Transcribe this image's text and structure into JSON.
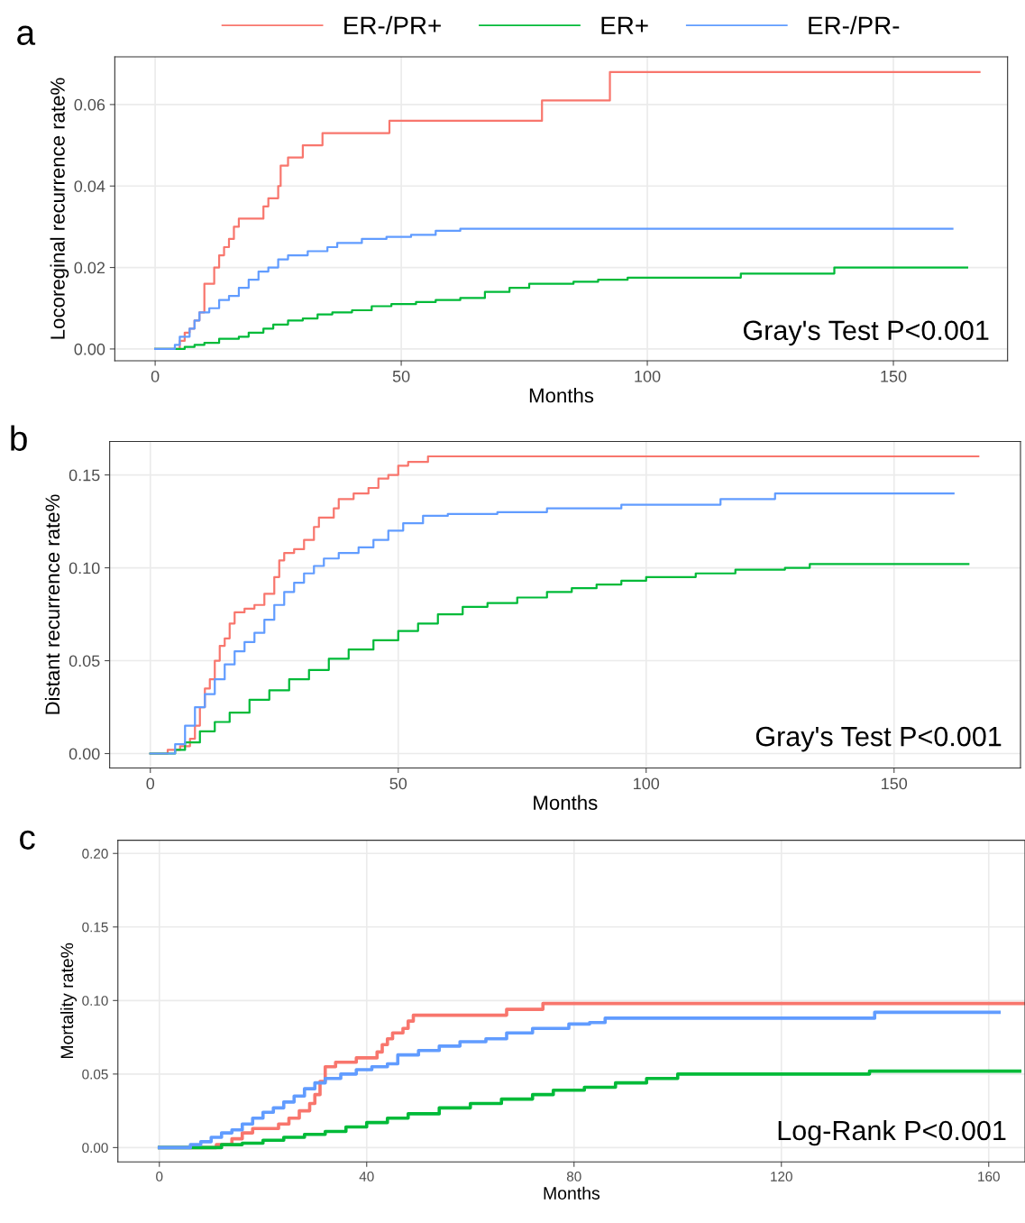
{
  "chart_data": [
    {
      "type": "step",
      "title": "a",
      "xlabel": "Months",
      "ylabel": "Locoreginal recurrence rate%",
      "legend": "top",
      "grid": true,
      "xlim": [
        -8.2,
        173.2
      ],
      "xticks": [
        0,
        50,
        100,
        150
      ],
      "ylim": [
        -0.0029,
        0.0717
      ],
      "yticks": [
        {
          "value": 0,
          "label": "0.00"
        },
        {
          "value": 0.02,
          "label": "0.02"
        },
        {
          "value": 0.04,
          "label": "0.04"
        },
        {
          "value": 0.06,
          "label": "0.06"
        }
      ],
      "annotations": [
        "Gray's Test P<0.001"
      ],
      "series": [
        {
          "name": "ER-/PR+",
          "color": "#f8766d",
          "x": [
            0,
            4,
            5,
            6,
            7,
            8,
            9,
            10,
            12,
            13,
            14,
            15,
            16,
            17,
            22,
            23,
            25,
            25.5,
            27,
            30,
            34,
            47.6,
            78.6,
            92.4,
            167.5
          ],
          "values": [
            0,
            0,
            0.002,
            0.004,
            0.005,
            0.007,
            0.009,
            0.016,
            0.02,
            0.023,
            0.025,
            0.027,
            0.03,
            0.032,
            0.035,
            0.037,
            0.04,
            0.045,
            0.047,
            0.05,
            0.053,
            0.056,
            0.061,
            0.068,
            0.068
          ]
        },
        {
          "name": "ER+",
          "color": "#00ba38",
          "x": [
            0,
            4,
            6,
            8,
            10,
            13,
            17,
            19,
            22,
            24,
            27,
            30,
            33,
            36,
            40,
            44,
            48,
            53,
            57,
            62,
            67,
            72,
            76,
            85,
            90,
            96,
            119,
            138,
            165
          ],
          "values": [
            0,
            0,
            0.0005,
            0.001,
            0.0015,
            0.0025,
            0.003,
            0.004,
            0.005,
            0.006,
            0.007,
            0.0075,
            0.0085,
            0.009,
            0.0095,
            0.0105,
            0.011,
            0.0115,
            0.012,
            0.0125,
            0.014,
            0.015,
            0.016,
            0.0165,
            0.017,
            0.0175,
            0.0185,
            0.02,
            0.02
          ]
        },
        {
          "name": "ER-/PR-",
          "color": "#619cff",
          "x": [
            0,
            3,
            4,
            5,
            7,
            8,
            9,
            11,
            13,
            15,
            17,
            19,
            21,
            23,
            25,
            27,
            31,
            35,
            37,
            42,
            47,
            52,
            57,
            62,
            162
          ],
          "values": [
            0,
            0,
            0.001,
            0.003,
            0.005,
            0.007,
            0.009,
            0.01,
            0.012,
            0.013,
            0.015,
            0.017,
            0.019,
            0.02,
            0.022,
            0.023,
            0.024,
            0.025,
            0.026,
            0.027,
            0.0275,
            0.028,
            0.029,
            0.0295,
            0.0295
          ]
        }
      ]
    },
    {
      "type": "step",
      "title": "b",
      "xlabel": "Months",
      "ylabel": "Distant recurrence rate%",
      "grid": true,
      "xlim": [
        -8.2,
        175.5
      ],
      "xticks": [
        0,
        50,
        100,
        150
      ],
      "ylim": [
        -0.0078,
        0.168
      ],
      "yticks": [
        {
          "value": 0,
          "label": "0.00"
        },
        {
          "value": 0.05,
          "label": "0.05"
        },
        {
          "value": 0.1,
          "label": "0.10"
        },
        {
          "value": 0.15,
          "label": "0.15"
        }
      ],
      "annotations": [
        "Gray's Test P<0.001"
      ],
      "series": [
        {
          "color": "#f8766d",
          "x": [
            0,
            3,
            3.5,
            6,
            8,
            9,
            10,
            11,
            12,
            13,
            14,
            15,
            16,
            17,
            19,
            21,
            23,
            25,
            26,
            27,
            29,
            31,
            33,
            34,
            37,
            38,
            41,
            44,
            46,
            48,
            50,
            52,
            56,
            167
          ],
          "values": [
            0,
            0,
            0.002,
            0.004,
            0.008,
            0.015,
            0.025,
            0.035,
            0.04,
            0.05,
            0.058,
            0.062,
            0.07,
            0.076,
            0.078,
            0.08,
            0.086,
            0.095,
            0.104,
            0.108,
            0.11,
            0.115,
            0.122,
            0.127,
            0.132,
            0.137,
            0.14,
            0.143,
            0.148,
            0.15,
            0.155,
            0.157,
            0.16,
            0.16
          ]
        },
        {
          "color": "#00ba38",
          "x": [
            0,
            3,
            5,
            7,
            10,
            13,
            16,
            20,
            24,
            28,
            32,
            36,
            40,
            45,
            50,
            54,
            58,
            63,
            68,
            74,
            80,
            85,
            90,
            95,
            100,
            110,
            118,
            128,
            133,
            165
          ],
          "values": [
            0,
            0,
            0.002,
            0.006,
            0.012,
            0.017,
            0.022,
            0.029,
            0.034,
            0.04,
            0.045,
            0.051,
            0.056,
            0.061,
            0.066,
            0.07,
            0.075,
            0.079,
            0.081,
            0.084,
            0.087,
            0.089,
            0.091,
            0.093,
            0.095,
            0.097,
            0.099,
            0.1,
            0.102,
            0.102
          ]
        },
        {
          "color": "#619cff",
          "x": [
            0,
            3,
            5,
            7,
            9,
            11,
            13,
            15,
            17,
            19,
            21,
            23,
            25,
            27,
            29,
            31,
            33,
            35,
            38,
            42,
            45,
            48,
            51,
            55,
            60,
            70,
            80,
            95,
            115,
            126,
            162
          ],
          "values": [
            0,
            0,
            0.005,
            0.015,
            0.025,
            0.032,
            0.04,
            0.048,
            0.055,
            0.06,
            0.065,
            0.072,
            0.08,
            0.087,
            0.092,
            0.097,
            0.101,
            0.105,
            0.108,
            0.111,
            0.115,
            0.12,
            0.124,
            0.128,
            0.129,
            0.13,
            0.132,
            0.134,
            0.137,
            0.14,
            0.14
          ]
        }
      ]
    },
    {
      "type": "step",
      "title": "c",
      "xlabel": "Months",
      "ylabel": "Mortality rate%",
      "grid": true,
      "xlim": [
        -8,
        167
      ],
      "xticks": [
        0,
        40,
        80,
        120,
        160
      ],
      "ylim": [
        -0.0097,
        0.209
      ],
      "yticks": [
        {
          "value": 0,
          "label": "0.00"
        },
        {
          "value": 0.05,
          "label": "0.05"
        },
        {
          "value": 0.1,
          "label": "0.10"
        },
        {
          "value": 0.15,
          "label": "0.15"
        },
        {
          "value": 0.2,
          "label": "0.20"
        }
      ],
      "annotations": [
        "Log-Rank P<0.001"
      ],
      "series": [
        {
          "color": "#f8766d",
          "x": [
            0,
            9,
            11,
            14,
            16,
            18,
            23,
            25,
            27,
            29,
            30,
            31,
            32,
            34,
            38,
            42,
            43,
            44,
            45,
            47,
            48,
            49,
            60,
            67,
            74,
            167
          ],
          "values": [
            0,
            0,
            0.002,
            0.006,
            0.01,
            0.013,
            0.016,
            0.02,
            0.025,
            0.03,
            0.036,
            0.045,
            0.055,
            0.058,
            0.061,
            0.065,
            0.07,
            0.074,
            0.078,
            0.081,
            0.086,
            0.09,
            0.09,
            0.094,
            0.098,
            0.098
          ]
        },
        {
          "color": "#00ba38",
          "x": [
            0,
            7,
            12,
            16,
            20,
            24,
            28,
            32,
            36,
            40,
            44,
            48,
            54,
            60,
            66,
            72,
            76,
            82,
            88,
            94,
            100,
            106,
            137,
            166
          ],
          "values": [
            0,
            0,
            0.002,
            0.003,
            0.005,
            0.007,
            0.009,
            0.011,
            0.014,
            0.017,
            0.02,
            0.023,
            0.027,
            0.03,
            0.033,
            0.036,
            0.039,
            0.041,
            0.044,
            0.047,
            0.05,
            0.05,
            0.052,
            0.052
          ]
        },
        {
          "color": "#619cff",
          "x": [
            0,
            4,
            6,
            8,
            10,
            12,
            14,
            16,
            18,
            20,
            22,
            24,
            26,
            28,
            30,
            32,
            35,
            38,
            41,
            44,
            46,
            50,
            54,
            58,
            63,
            67,
            72,
            79,
            83,
            86,
            138,
            162
          ],
          "values": [
            0,
            0,
            0.002,
            0.004,
            0.007,
            0.01,
            0.012,
            0.016,
            0.02,
            0.024,
            0.027,
            0.031,
            0.035,
            0.04,
            0.044,
            0.047,
            0.05,
            0.053,
            0.055,
            0.057,
            0.063,
            0.066,
            0.069,
            0.072,
            0.074,
            0.078,
            0.081,
            0.084,
            0.085,
            0.088,
            0.092,
            0.092
          ]
        }
      ]
    }
  ]
}
